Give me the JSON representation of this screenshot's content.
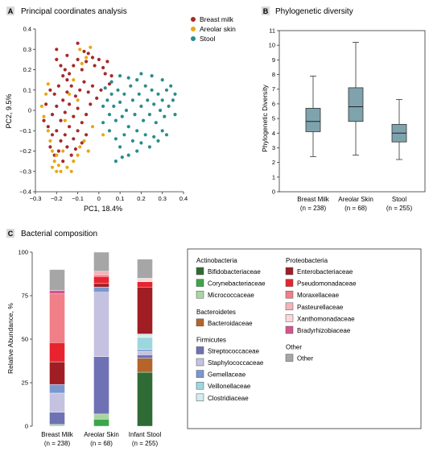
{
  "colors": {
    "breast_milk": "#a52a2a",
    "areolar_skin": "#e6a817",
    "stool": "#2b8c8c",
    "box_fill": "#7fa3ad",
    "panel_letter_bg": "#d9d9d9"
  },
  "chart_data": [
    {
      "panel": "A",
      "type": "scatter",
      "title": "Principal coordinates analysis",
      "xlabel": "PC1, 18.4%",
      "ylabel": "PC2, 9.5%",
      "xlim": [
        -0.3,
        0.4
      ],
      "ylim": [
        -0.4,
        0.4
      ],
      "xticks": [
        "−0.3",
        "−0.2",
        "−0.1",
        "0",
        "0.1",
        "0.2",
        "0.3",
        "0.4"
      ],
      "yticks": [
        "0.4",
        "0.3",
        "0.2",
        "0.1",
        "0",
        "−0.1",
        "−0.2",
        "−0.3",
        "−0.4"
      ],
      "legend_position": "top-right",
      "series": [
        {
          "name": "Breast milk",
          "color_key": "breast_milk",
          "points": [
            [
              -0.2,
              0.25
            ],
            [
              -0.18,
              0.22
            ],
            [
              -0.17,
              0.17
            ],
            [
              -0.16,
              0.2
            ],
            [
              -0.15,
              0.15
            ],
            [
              -0.14,
              0.18
            ],
            [
              -0.12,
              0.22
            ],
            [
              -0.1,
              0.25
            ],
            [
              -0.08,
              0.2
            ],
            [
              -0.06,
              0.24
            ],
            [
              -0.05,
              0.28
            ],
            [
              -0.03,
              0.26
            ],
            [
              -0.02,
              0.22
            ],
            [
              0.0,
              0.25
            ],
            [
              0.02,
              0.21
            ],
            [
              0.04,
              0.24
            ],
            [
              0.06,
              0.17
            ],
            [
              -0.23,
              0.1
            ],
            [
              -0.21,
              0.08
            ],
            [
              -0.19,
              0.12
            ],
            [
              -0.17,
              0.05
            ],
            [
              -0.15,
              0.09
            ],
            [
              -0.13,
              0.12
            ],
            [
              -0.11,
              0.07
            ],
            [
              -0.09,
              0.1
            ],
            [
              -0.07,
              0.14
            ],
            [
              -0.05,
              0.09
            ],
            [
              -0.03,
              0.12
            ],
            [
              -0.01,
              0.06
            ],
            [
              0.01,
              0.1
            ],
            [
              -0.22,
              -0.02
            ],
            [
              -0.2,
              0.02
            ],
            [
              -0.18,
              -0.05
            ],
            [
              -0.16,
              -0.01
            ],
            [
              -0.14,
              0.03
            ],
            [
              -0.12,
              -0.03
            ],
            [
              -0.1,
              0.01
            ],
            [
              -0.08,
              -0.06
            ],
            [
              -0.06,
              -0.02
            ],
            [
              -0.04,
              0.03
            ],
            [
              -0.24,
              -0.08
            ],
            [
              -0.22,
              -0.12
            ],
            [
              -0.2,
              -0.1
            ],
            [
              -0.18,
              -0.15
            ],
            [
              -0.16,
              -0.12
            ],
            [
              -0.14,
              -0.08
            ],
            [
              -0.12,
              -0.14
            ],
            [
              -0.1,
              -0.1
            ],
            [
              -0.08,
              -0.16
            ],
            [
              -0.06,
              -0.12
            ],
            [
              -0.23,
              -0.18
            ],
            [
              -0.21,
              -0.22
            ],
            [
              -0.19,
              -0.2
            ],
            [
              -0.17,
              -0.25
            ],
            [
              -0.15,
              -0.18
            ],
            [
              -0.13,
              -0.22
            ],
            [
              -0.11,
              -0.19
            ],
            [
              -0.2,
              0.3
            ],
            [
              -0.15,
              0.27
            ],
            [
              -0.1,
              0.33
            ],
            [
              -0.07,
              0.29
            ],
            [
              0.03,
              0.18
            ],
            [
              0.05,
              0.13
            ],
            [
              -0.25,
              0.03
            ],
            [
              -0.26,
              -0.05
            ]
          ]
        },
        {
          "name": "Areolar skin",
          "color_key": "areolar_skin",
          "points": [
            [
              -0.25,
              0.08
            ],
            [
              -0.27,
              0.02
            ],
            [
              -0.26,
              -0.03
            ],
            [
              -0.24,
              -0.1
            ],
            [
              -0.23,
              -0.15
            ],
            [
              -0.22,
              -0.2
            ],
            [
              -0.21,
              -0.25
            ],
            [
              -0.22,
              -0.28
            ],
            [
              -0.2,
              -0.3
            ],
            [
              -0.19,
              -0.27
            ],
            [
              -0.18,
              -0.3
            ],
            [
              -0.2,
              -0.22
            ],
            [
              -0.17,
              -0.2
            ],
            [
              -0.15,
              -0.28
            ],
            [
              -0.13,
              -0.3
            ],
            [
              -0.12,
              -0.25
            ],
            [
              -0.1,
              -0.22
            ],
            [
              -0.09,
              -0.18
            ],
            [
              -0.07,
              -0.15
            ],
            [
              -0.05,
              -0.2
            ],
            [
              -0.16,
              -0.05
            ],
            [
              -0.1,
              0.05
            ],
            [
              -0.12,
              0.15
            ],
            [
              -0.08,
              0.23
            ],
            [
              -0.06,
              0.26
            ],
            [
              -0.04,
              0.31
            ],
            [
              -0.09,
              0.3
            ],
            [
              -0.14,
              0.08
            ],
            [
              -0.03,
              -0.08
            ],
            [
              0.02,
              -0.12
            ],
            [
              -0.24,
              0.13
            ]
          ]
        },
        {
          "name": "Stool",
          "color_key": "stool",
          "points": [
            [
              0.02,
              0.02
            ],
            [
              0.04,
              0.05
            ],
            [
              0.05,
              -0.02
            ],
            [
              0.06,
              0.08
            ],
            [
              0.07,
              0.02
            ],
            [
              0.08,
              -0.05
            ],
            [
              0.09,
              0.1
            ],
            [
              0.1,
              0.04
            ],
            [
              0.11,
              -0.03
            ],
            [
              0.12,
              0.08
            ],
            [
              0.13,
              0.0
            ],
            [
              0.14,
              -0.08
            ],
            [
              0.15,
              0.12
            ],
            [
              0.16,
              0.05
            ],
            [
              0.17,
              -0.02
            ],
            [
              0.18,
              0.15
            ],
            [
              0.19,
              0.08
            ],
            [
              0.2,
              0.02
            ],
            [
              0.21,
              -0.05
            ],
            [
              0.22,
              0.12
            ],
            [
              0.23,
              0.05
            ],
            [
              0.24,
              -0.02
            ],
            [
              0.25,
              0.1
            ],
            [
              0.26,
              0.03
            ],
            [
              0.27,
              -0.06
            ],
            [
              0.28,
              0.08
            ],
            [
              0.29,
              0.0
            ],
            [
              0.3,
              0.05
            ],
            [
              0.31,
              -0.03
            ],
            [
              0.32,
              0.1
            ],
            [
              0.33,
              0.02
            ],
            [
              0.35,
              0.05
            ],
            [
              0.36,
              -0.02
            ],
            [
              0.05,
              -0.1
            ],
            [
              0.08,
              -0.14
            ],
            [
              0.1,
              -0.18
            ],
            [
              0.12,
              -0.12
            ],
            [
              0.14,
              -0.22
            ],
            [
              0.16,
              -0.15
            ],
            [
              0.18,
              -0.1
            ],
            [
              0.2,
              -0.16
            ],
            [
              0.22,
              -0.12
            ],
            [
              0.24,
              -0.18
            ],
            [
              0.26,
              -0.13
            ],
            [
              0.28,
              -0.15
            ],
            [
              0.3,
              -0.1
            ],
            [
              0.32,
              -0.12
            ],
            [
              0.06,
              0.14
            ],
            [
              0.1,
              0.17
            ],
            [
              0.14,
              0.16
            ],
            [
              0.2,
              0.18
            ],
            [
              0.25,
              0.17
            ],
            [
              0.3,
              0.15
            ],
            [
              0.34,
              0.12
            ],
            [
              0.02,
              -0.06
            ],
            [
              0.03,
              0.11
            ],
            [
              0.11,
              -0.23
            ],
            [
              0.08,
              -0.25
            ],
            [
              0.18,
              -0.2
            ],
            [
              0.36,
              0.08
            ]
          ]
        }
      ]
    },
    {
      "panel": "B",
      "type": "box",
      "title": "Phylogenetic diversity",
      "ylabel": "Phylogenetic Diversity",
      "ylim": [
        0,
        11
      ],
      "yticks": [
        "11",
        "10",
        "9",
        "8",
        "7",
        "6",
        "5",
        "4",
        "3",
        "2",
        "1",
        "0"
      ],
      "categories": [
        {
          "label": "Breast Milk",
          "n": "(n = 238)"
        },
        {
          "label": "Areolar Skin",
          "n": "(n = 68)"
        },
        {
          "label": "Stool",
          "n": "(n = 255)"
        }
      ],
      "boxes": [
        {
          "min": 2.4,
          "q1": 4.1,
          "median": 4.8,
          "q3": 5.7,
          "max": 7.9
        },
        {
          "min": 2.5,
          "q1": 4.8,
          "median": 5.8,
          "q3": 7.1,
          "max": 10.2
        },
        {
          "min": 2.2,
          "q1": 3.4,
          "median": 4.0,
          "q3": 4.6,
          "max": 6.3
        }
      ]
    },
    {
      "panel": "C",
      "type": "stacked_bar",
      "title": "Bacterial composition",
      "ylabel": "Relative Abundance, %",
      "ylim": [
        0,
        100
      ],
      "yticks": [
        "100",
        "75",
        "50",
        "25",
        "0"
      ],
      "categories": [
        {
          "label": "Breast Milk",
          "n": "(n = 238)"
        },
        {
          "label": "Areolar Skin",
          "n": "(n = 68)"
        },
        {
          "label": "Infant Stool",
          "n": "(n = 255)"
        }
      ],
      "taxa": [
        {
          "name": "Bifidobacteriaceae",
          "color": "#2e6b35"
        },
        {
          "name": "Corynebacteriaceae",
          "color": "#3aa64a"
        },
        {
          "name": "Micrococcaceae",
          "color": "#a9d6a0"
        },
        {
          "name": "Bacteroidaceae",
          "color": "#b5652a"
        },
        {
          "name": "Streptococcaceae",
          "color": "#6e72b4"
        },
        {
          "name": "Staphylococcaceae",
          "color": "#c4c2e0"
        },
        {
          "name": "Gemellaceae",
          "color": "#7b97cf"
        },
        {
          "name": "Veillonellaceae",
          "color": "#9dd7de"
        },
        {
          "name": "Clostridiaceae",
          "color": "#d3ecee"
        },
        {
          "name": "Enterobacteriaceae",
          "color": "#a01e23"
        },
        {
          "name": "Pseudomonadaceae",
          "color": "#e8232f"
        },
        {
          "name": "Moraxellaceae",
          "color": "#f07f87"
        },
        {
          "name": "Pasteurellaceae",
          "color": "#f5b3b8"
        },
        {
          "name": "Xanthomonadaceae",
          "color": "#fad7da"
        },
        {
          "name": "Bradyrhizobiaceae",
          "color": "#d2558f"
        },
        {
          "name": "Other",
          "color": "#a6a6a6"
        }
      ],
      "series": [
        {
          "name": "Bifidobacteriaceae",
          "values": [
            0,
            0,
            31
          ]
        },
        {
          "name": "Corynebacteriaceae",
          "values": [
            0,
            4,
            0
          ]
        },
        {
          "name": "Micrococcaceae",
          "values": [
            1,
            3,
            0
          ]
        },
        {
          "name": "Bacteroidaceae",
          "values": [
            0,
            0,
            8
          ]
        },
        {
          "name": "Streptococcaceae",
          "values": [
            7,
            33,
            2
          ]
        },
        {
          "name": "Staphylococcaceae",
          "values": [
            11,
            37,
            2
          ]
        },
        {
          "name": "Gemellaceae",
          "values": [
            5,
            3,
            1
          ]
        },
        {
          "name": "Veillonellaceae",
          "values": [
            0,
            0,
            7
          ]
        },
        {
          "name": "Clostridiaceae",
          "values": [
            0,
            0,
            2
          ]
        },
        {
          "name": "Enterobacteriaceae",
          "values": [
            13,
            2,
            27
          ]
        },
        {
          "name": "Pseudomonadaceae",
          "values": [
            11,
            4,
            3
          ]
        },
        {
          "name": "Moraxellaceae",
          "values": [
            28,
            1,
            0
          ]
        },
        {
          "name": "Pasteurellaceae",
          "values": [
            0,
            2,
            0
          ]
        },
        {
          "name": "Xanthomonadaceae",
          "values": [
            0,
            0,
            2
          ]
        },
        {
          "name": "Bradyrhizobiaceae",
          "values": [
            2,
            0,
            0
          ]
        },
        {
          "name": "Other",
          "values": [
            12,
            11,
            11
          ]
        }
      ],
      "legend_groups": [
        {
          "title": "Actinobacteria",
          "items": [
            "Bifidobacteriaceae",
            "Corynebacteriaceae",
            "Micrococcaceae"
          ]
        },
        {
          "title": "Bacteroidetes",
          "items": [
            "Bacteroidaceae"
          ]
        },
        {
          "title": "Firmicutes",
          "items": [
            "Streptococcaceae",
            "Staphylococcaceae",
            "Gemellaceae",
            "Veillonellaceae",
            "Clostridiaceae"
          ]
        },
        {
          "title": "Proteobacteria",
          "items": [
            "Enterobacteriaceae",
            "Pseudomonadaceae",
            "Moraxellaceae",
            "Pasteurellaceae",
            "Xanthomonadaceae",
            "Bradyrhizobiaceae"
          ]
        },
        {
          "title": "Other",
          "items": [
            "Other"
          ]
        }
      ]
    }
  ]
}
